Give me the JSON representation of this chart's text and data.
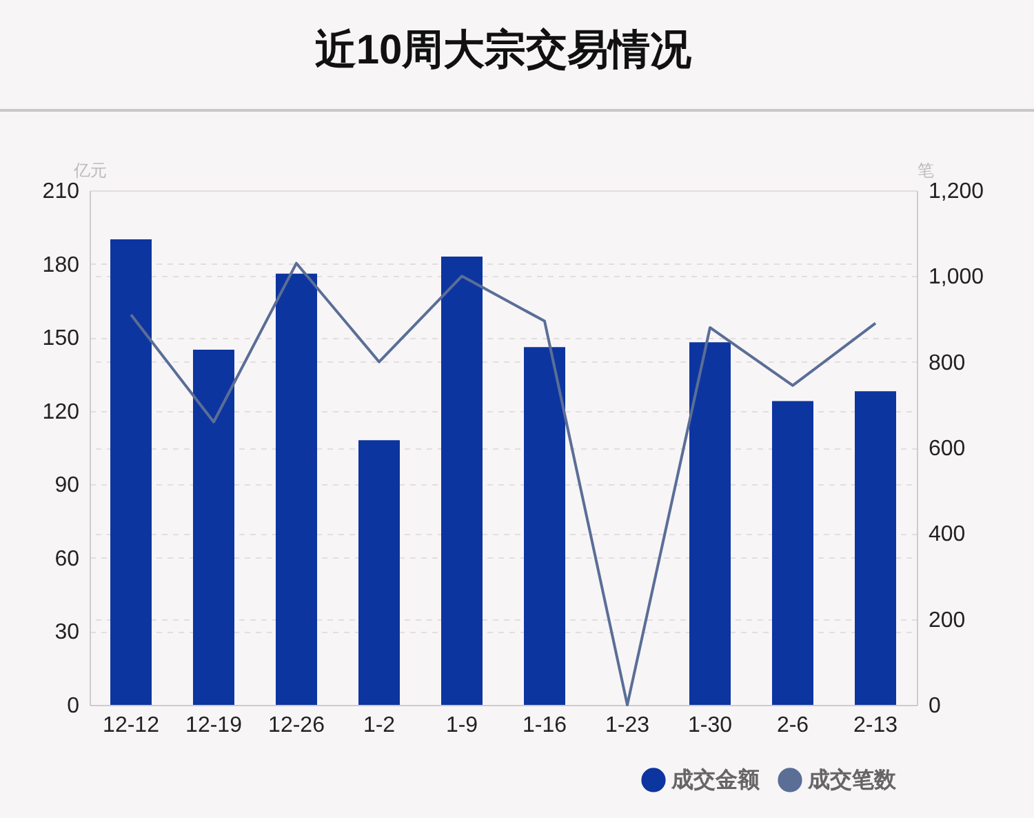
{
  "chart_data": {
    "type": "bar",
    "title": "近10周大宗交易情况",
    "ylabel": "亿元",
    "y2label": "笔",
    "categories": [
      "12-12",
      "12-19",
      "12-26",
      "1-2",
      "1-9",
      "1-16",
      "1-23",
      "1-30",
      "2-6",
      "2-13"
    ],
    "series": [
      {
        "name": "成交金额",
        "color": "#0d35a0",
        "values": [
          190,
          145,
          176,
          108,
          183,
          146,
          0,
          148,
          124,
          128
        ]
      },
      {
        "name": "成交笔数",
        "type": "line",
        "axis": "y2",
        "color": "#5a6e96",
        "values": [
          910,
          660,
          1030,
          800,
          1000,
          895,
          0,
          880,
          745,
          890
        ]
      }
    ],
    "ylim": [
      0,
      210
    ],
    "yticks": [
      0,
      30,
      60,
      90,
      120,
      150,
      180,
      210
    ],
    "y2lim": [
      0,
      1200
    ],
    "y2ticks": [
      0,
      {
        "value": 200,
        "label": "200"
      },
      {
        "value": 400,
        "label": "400"
      },
      {
        "value": 600,
        "label": "600"
      },
      {
        "value": 800,
        "label": "800"
      },
      {
        "value": 1000,
        "label": "1,000"
      },
      {
        "value": 1200,
        "label": "1,200"
      }
    ],
    "grid": true,
    "legend": "bottom right"
  }
}
